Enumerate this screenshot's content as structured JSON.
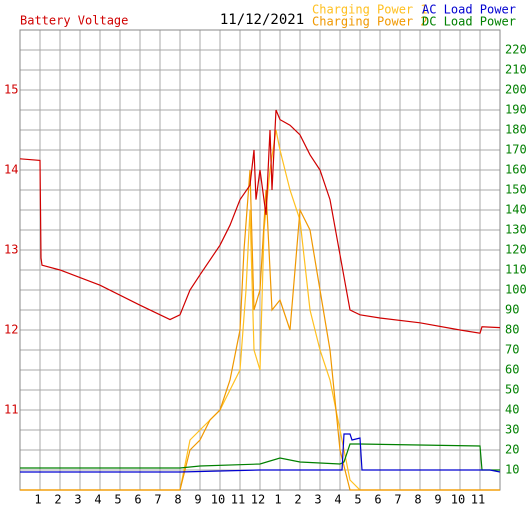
{
  "chart_data": {
    "type": "line",
    "title": "11/12/2021",
    "ylabel": "Battery Voltage",
    "xlim": [
      0,
      24
    ],
    "xticks": [
      1,
      2,
      3,
      4,
      5,
      6,
      7,
      8,
      9,
      10,
      11,
      12,
      {
        "value": 13,
        "label": "1"
      },
      {
        "value": 14,
        "label": "2"
      },
      {
        "value": 15,
        "label": "3"
      },
      {
        "value": 16,
        "label": "4"
      },
      {
        "value": 17,
        "label": "5"
      },
      {
        "value": 18,
        "label": "6"
      },
      {
        "value": 19,
        "label": "7"
      },
      {
        "value": 20,
        "label": "8"
      },
      {
        "value": 21,
        "label": "9"
      },
      {
        "value": 22,
        "label": "10"
      },
      {
        "value": 23,
        "label": "11"
      }
    ],
    "ylim": [
      10,
      15.75
    ],
    "yticks": [
      11,
      12,
      13,
      14,
      15
    ],
    "ytick_color": "#d00000",
    "y2lim": [
      0,
      230
    ],
    "y2ticks": [
      10,
      20,
      30,
      40,
      50,
      60,
      70,
      80,
      90,
      100,
      110,
      120,
      130,
      140,
      150,
      160,
      170,
      180,
      190,
      200,
      210,
      220
    ],
    "y2tick_color": "#008000",
    "grid": true,
    "series": [
      {
        "name": "Battery Voltage",
        "color": "#d00000",
        "axis": "y",
        "x": [
          0,
          1,
          1.05,
          1.1,
          2,
          4,
          6,
          7.5,
          8,
          8.5,
          9,
          10,
          10.5,
          11,
          11.5,
          11.7,
          11.8,
          12,
          12.3,
          12.5,
          12.6,
          12.8,
          13,
          13.5,
          14,
          14.5,
          15,
          15.5,
          16,
          16.5,
          17,
          18,
          20,
          22,
          23,
          23.1,
          24
        ],
        "values": [
          14.14,
          14.12,
          12.9,
          12.81,
          12.75,
          12.56,
          12.31,
          12.13,
          12.19,
          12.5,
          12.69,
          13.06,
          13.31,
          13.63,
          13.81,
          14.25,
          13.63,
          14.0,
          13.44,
          14.5,
          13.75,
          14.75,
          14.63,
          14.56,
          14.44,
          14.19,
          14.0,
          13.63,
          12.94,
          12.25,
          12.19,
          12.15,
          12.09,
          12.0,
          11.96,
          12.04,
          12.03
        ]
      },
      {
        "name": "Charging Power 1",
        "color": "#ffc020",
        "axis": "y2",
        "x": [
          0,
          8,
          8.5,
          9,
          9.5,
          10,
          10.5,
          11,
          11.3,
          11.5,
          11.7,
          12,
          12.2,
          12.5,
          12.8,
          13,
          13.5,
          14,
          14.5,
          15,
          15.5,
          16,
          16.5,
          17,
          24
        ],
        "values": [
          0,
          0,
          25,
          30,
          35,
          40,
          50,
          60,
          100,
          140,
          70,
          60,
          130,
          160,
          180,
          170,
          150,
          135,
          90,
          70,
          55,
          30,
          5,
          0,
          0
        ]
      },
      {
        "name": "Charging Power 2",
        "color": "#f09800",
        "axis": "y2",
        "x": [
          0,
          8,
          8.5,
          9,
          9.5,
          10,
          10.5,
          11,
          11.2,
          11.5,
          11.7,
          12,
          12.3,
          12.6,
          13,
          13.5,
          14,
          14.5,
          15,
          15.5,
          16,
          16.5,
          24
        ],
        "values": [
          0,
          0,
          20,
          25,
          35,
          40,
          55,
          80,
          120,
          160,
          90,
          100,
          150,
          90,
          95,
          80,
          140,
          130,
          100,
          70,
          20,
          0,
          0
        ]
      },
      {
        "name": "AC Load Power",
        "color": "#0000d0",
        "axis": "y2",
        "x": [
          0,
          8,
          12,
          16.1,
          16.2,
          16.5,
          16.6,
          17,
          17.1,
          23.5,
          24
        ],
        "values": [
          9,
          9,
          10,
          10,
          28,
          28,
          25,
          26,
          10,
          10,
          9
        ]
      },
      {
        "name": "DC Load Power",
        "color": "#008000",
        "axis": "y2",
        "x": [
          0,
          8,
          9,
          12,
          13,
          14,
          16,
          16.2,
          16.5,
          17,
          23,
          23.1,
          24
        ],
        "values": [
          11,
          11,
          12,
          13,
          16,
          14,
          13,
          14,
          23,
          23,
          22,
          10,
          10
        ]
      }
    ]
  }
}
